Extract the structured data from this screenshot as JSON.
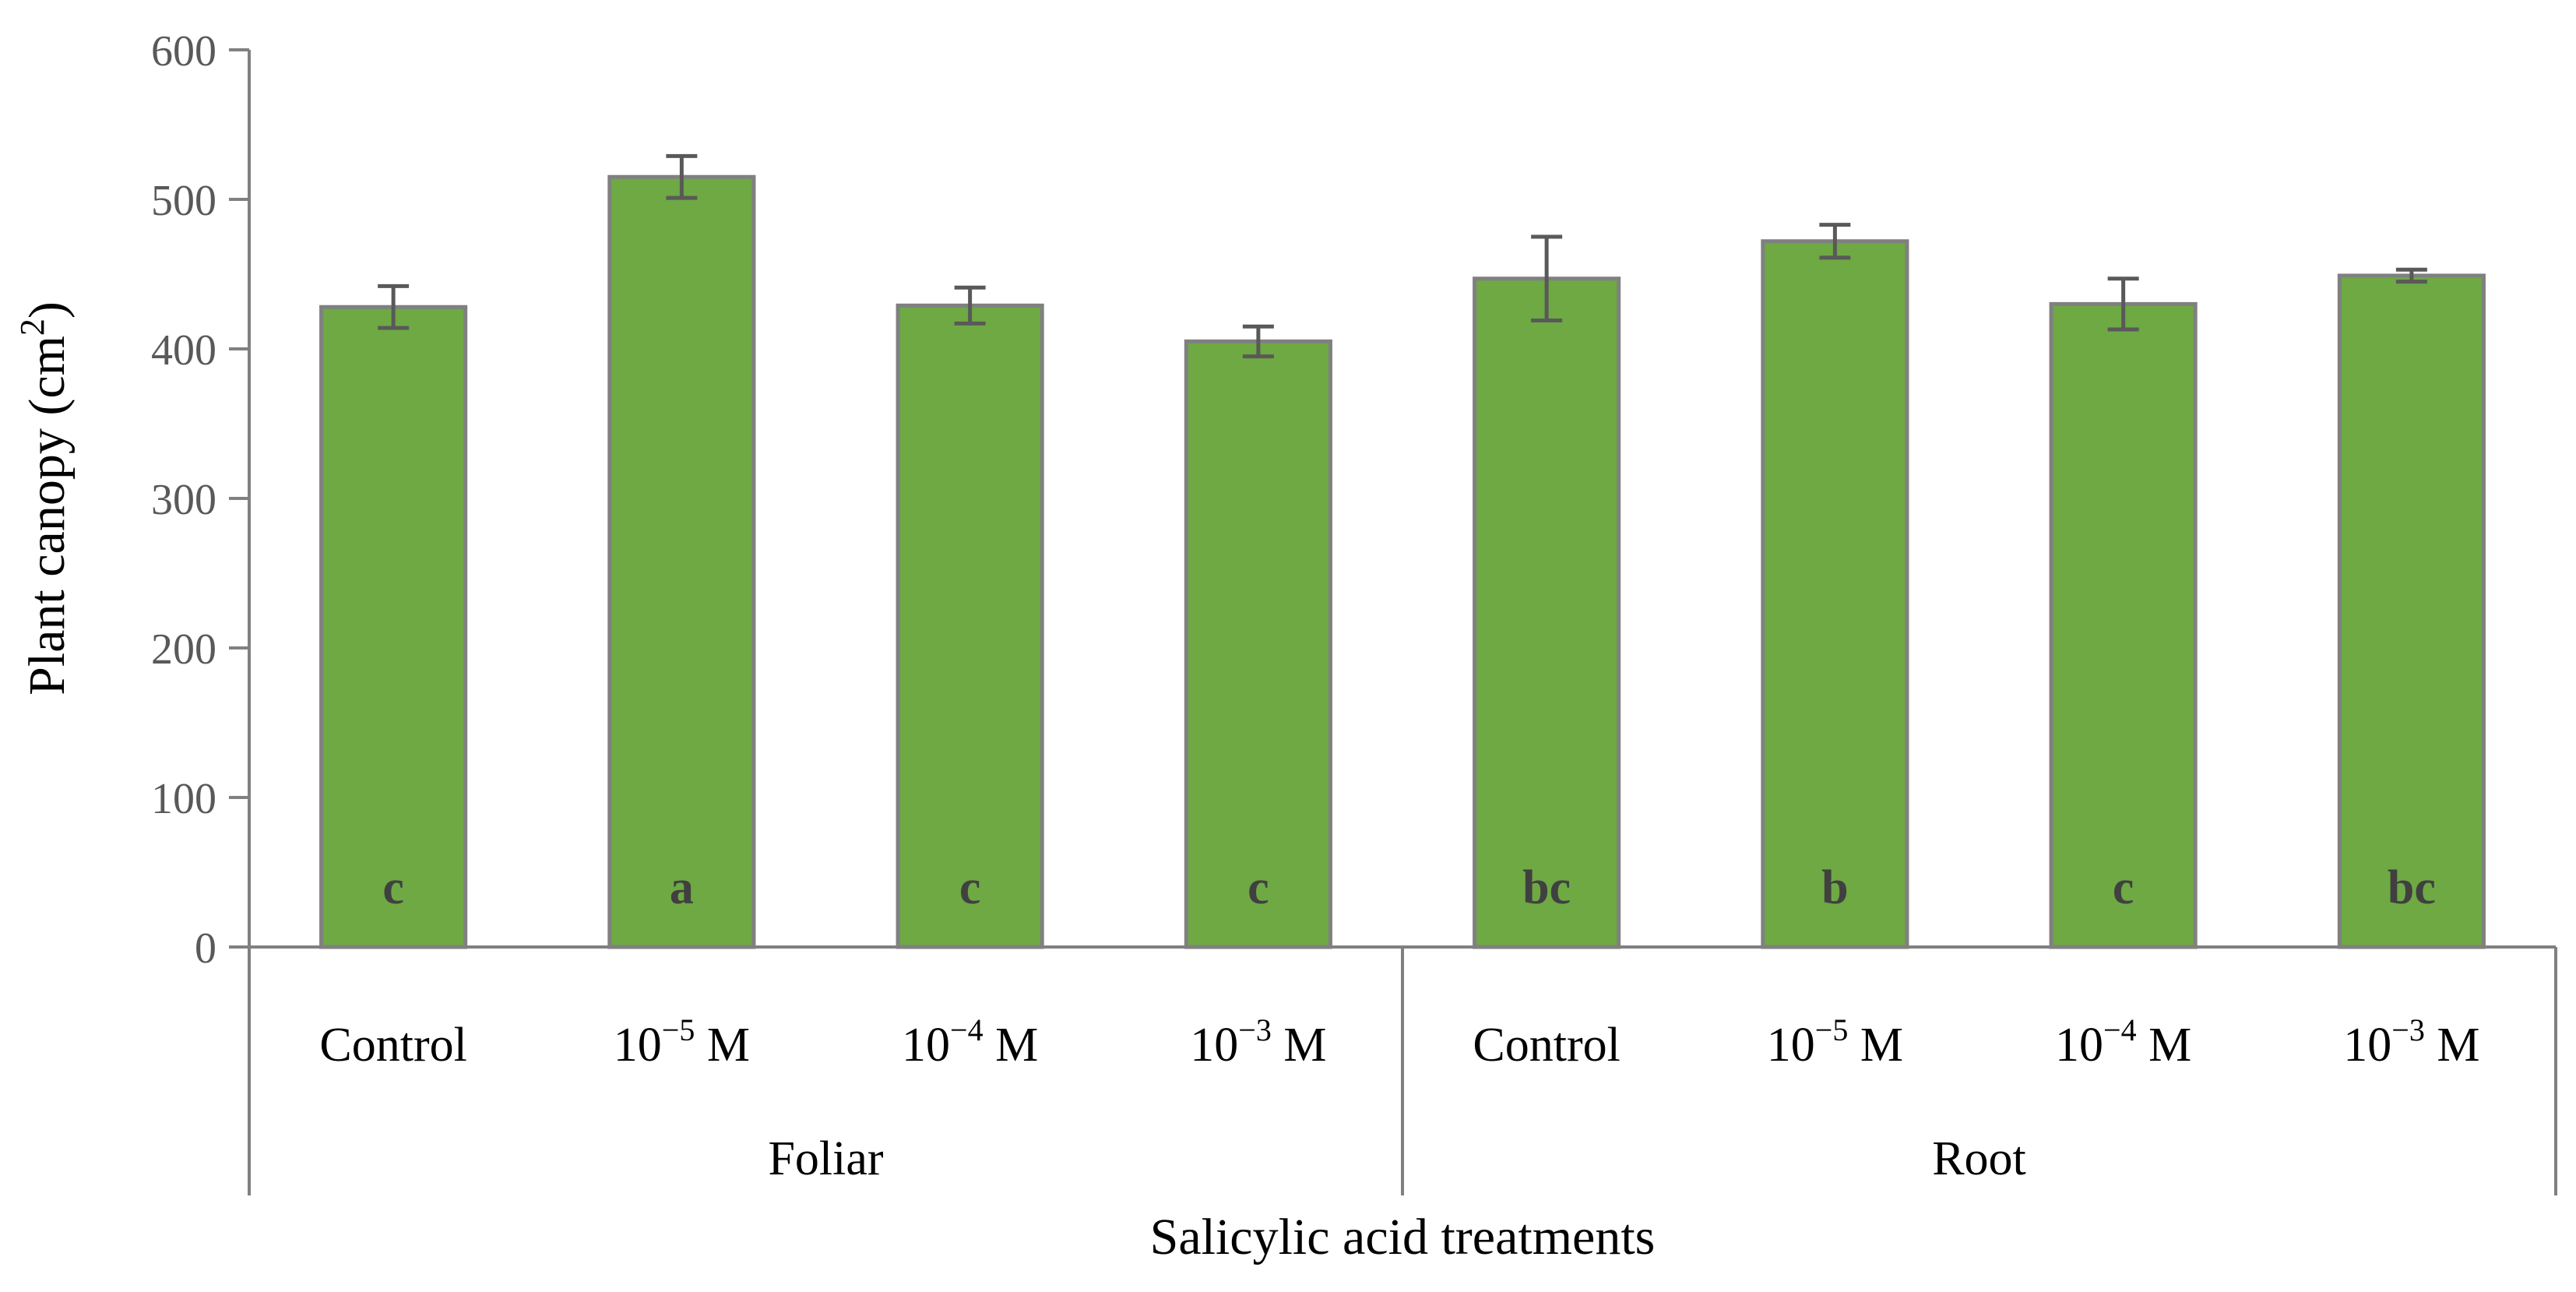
{
  "chart_data": {
    "type": "bar",
    "title": "",
    "ylabel_main": "Plant canopy (cm",
    "ylabel_sup": "2",
    "ylabel_tail": ")",
    "xlabel": "Salicylic acid treatments",
    "ylim": [
      0,
      600
    ],
    "yticks": [
      {
        "value": 0,
        "label": "0"
      },
      {
        "value": 100,
        "label": "100"
      },
      {
        "value": 200,
        "label": "200"
      },
      {
        "value": 300,
        "label": "300"
      },
      {
        "value": 400,
        "label": "400"
      },
      {
        "value": 500,
        "label": "500"
      },
      {
        "value": 600,
        "label": "600"
      }
    ],
    "groups": [
      {
        "name": "Foliar",
        "start": 0,
        "count": 4
      },
      {
        "name": "Root",
        "start": 4,
        "count": 4
      }
    ],
    "categories": [
      {
        "base": "Control",
        "exp": "",
        "unit": ""
      },
      {
        "base": "10",
        "exp": "−5",
        "unit": " M"
      },
      {
        "base": "10",
        "exp": "−4",
        "unit": " M"
      },
      {
        "base": "10",
        "exp": "−3",
        "unit": " M"
      },
      {
        "base": "Control",
        "exp": "",
        "unit": ""
      },
      {
        "base": "10",
        "exp": "−5",
        "unit": " M"
      },
      {
        "base": "10",
        "exp": "−4",
        "unit": " M"
      },
      {
        "base": "10",
        "exp": "−3",
        "unit": " M"
      }
    ],
    "values": [
      428,
      515,
      429,
      405,
      447,
      472,
      430,
      449
    ],
    "errors": [
      14,
      14,
      12,
      10,
      28,
      11,
      17,
      4
    ],
    "significance": [
      "c",
      "a",
      "c",
      "c",
      "bc",
      "b",
      "c",
      "bc"
    ],
    "colors": {
      "bar_fill": "#6EA944",
      "bar_stroke": "#808080",
      "axis": "#808080",
      "error_bar": "#595959"
    }
  }
}
